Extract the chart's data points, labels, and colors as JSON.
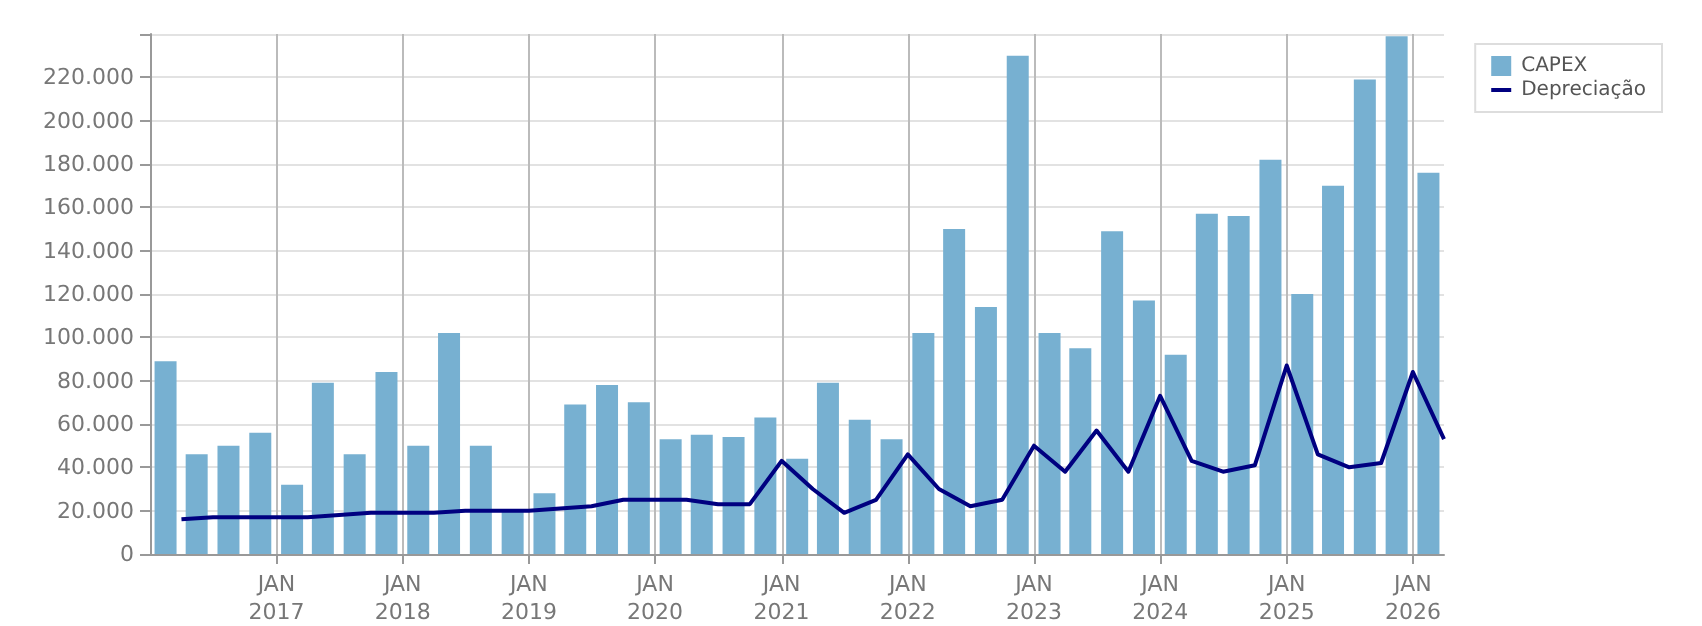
{
  "chart_data": {
    "type": "bar",
    "x": [
      "2016-02-15",
      "2016-05-15",
      "2016-08-15",
      "2016-11-15",
      "2017-02-15",
      "2017-05-15",
      "2017-08-15",
      "2017-11-15",
      "2018-02-15",
      "2018-05-15",
      "2018-08-15",
      "2018-11-15",
      "2019-02-15",
      "2019-05-15",
      "2019-08-15",
      "2019-11-15",
      "2020-02-15",
      "2020-05-15",
      "2020-08-15",
      "2020-11-15",
      "2021-02-15",
      "2021-05-15",
      "2021-08-15",
      "2021-11-15",
      "2022-02-15",
      "2022-05-15",
      "2022-08-15",
      "2022-11-15",
      "2023-02-15",
      "2023-05-15",
      "2023-08-15",
      "2023-11-15",
      "2024-02-15",
      "2024-05-15",
      "2024-08-15",
      "2024-11-15",
      "2025-02-15",
      "2025-05-15",
      "2025-08-15",
      "2025-11-15",
      "2026-02-15"
    ],
    "series": [
      {
        "name": "CAPEX",
        "color": "#77b0d1",
        "values": [
          89000,
          46000,
          50000,
          56000,
          32000,
          79000,
          46000,
          84000,
          50000,
          102000,
          50000,
          20000,
          28000,
          69000,
          78000,
          70000,
          53000,
          55000,
          54000,
          63000,
          44000,
          79000,
          62000,
          53000,
          102000,
          150000,
          114000,
          230000,
          102000,
          95000,
          149000,
          117000,
          92000,
          157000,
          156000,
          182000,
          120000,
          170000,
          219000,
          239000,
          176000
        ]
      },
      {
        "name": "Depreciação",
        "type": "line",
        "color": "#000080",
        "x": [
          "2016-04-01",
          "2016-07-01",
          "2016-10-01",
          "2017-01-01",
          "2017-04-01",
          "2017-07-01",
          "2017-10-01",
          "2018-01-01",
          "2018-04-01",
          "2018-07-01",
          "2018-10-01",
          "2019-01-01",
          "2019-04-01",
          "2019-07-01",
          "2019-10-01",
          "2020-01-01",
          "2020-04-01",
          "2020-07-01",
          "2020-10-01",
          "2021-01-01",
          "2021-04-01",
          "2021-07-01",
          "2021-10-01",
          "2022-01-01",
          "2022-04-01",
          "2022-07-01",
          "2022-10-01",
          "2023-01-01",
          "2023-04-01",
          "2023-07-01",
          "2023-10-01",
          "2024-01-01",
          "2024-04-01",
          "2024-07-01",
          "2024-10-01",
          "2025-01-01",
          "2025-04-01",
          "2025-07-01",
          "2025-10-01",
          "2026-01-01",
          "2026-04-01"
        ],
        "values": [
          16000,
          17000,
          17000,
          17000,
          17000,
          18000,
          19000,
          19000,
          19000,
          20000,
          20000,
          20000,
          21000,
          22000,
          25000,
          25000,
          25000,
          23000,
          23000,
          43000,
          30000,
          19000,
          25000,
          46000,
          30000,
          22000,
          25000,
          50000,
          38000,
          57000,
          38000,
          73000,
          43000,
          38000,
          41000,
          87000,
          46000,
          40000,
          42000,
          84000,
          53000
        ]
      }
    ],
    "xlim": [
      "2016-01-01",
      "2026-04-01"
    ],
    "xticks": [
      {
        "value": "2017-01-01",
        "label": "JAN\n2017"
      },
      {
        "value": "2018-01-01",
        "label": "JAN\n2018"
      },
      {
        "value": "2019-01-01",
        "label": "JAN\n2019"
      },
      {
        "value": "2020-01-01",
        "label": "JAN\n2020"
      },
      {
        "value": "2021-01-01",
        "label": "JAN\n2021"
      },
      {
        "value": "2022-01-01",
        "label": "JAN\n2022"
      },
      {
        "value": "2023-01-01",
        "label": "JAN\n2023"
      },
      {
        "value": "2024-01-01",
        "label": "JAN\n2024"
      },
      {
        "value": "2025-01-01",
        "label": "JAN\n2025"
      },
      {
        "value": "2026-01-01",
        "label": "JAN\n2026"
      }
    ],
    "ylim": [
      0,
      240000
    ],
    "yticks": [
      {
        "value": 0,
        "label": "0"
      },
      {
        "value": 20000,
        "label": "20.000"
      },
      {
        "value": 40000,
        "label": "40.000"
      },
      {
        "value": 60000,
        "label": "60.000"
      },
      {
        "value": 80000,
        "label": "80.000"
      },
      {
        "value": 100000,
        "label": "100.000"
      },
      {
        "value": 120000,
        "label": "120.000"
      },
      {
        "value": 140000,
        "label": "140.000"
      },
      {
        "value": 160000,
        "label": "160.000"
      },
      {
        "value": 180000,
        "label": "180.000"
      },
      {
        "value": 200000,
        "label": "200.000"
      },
      {
        "value": 220000,
        "label": "220.000"
      },
      {
        "value": 240000,
        "label": null
      }
    ],
    "grid": true,
    "legend": "top right",
    "marker": "none",
    "line_style": "solid"
  }
}
